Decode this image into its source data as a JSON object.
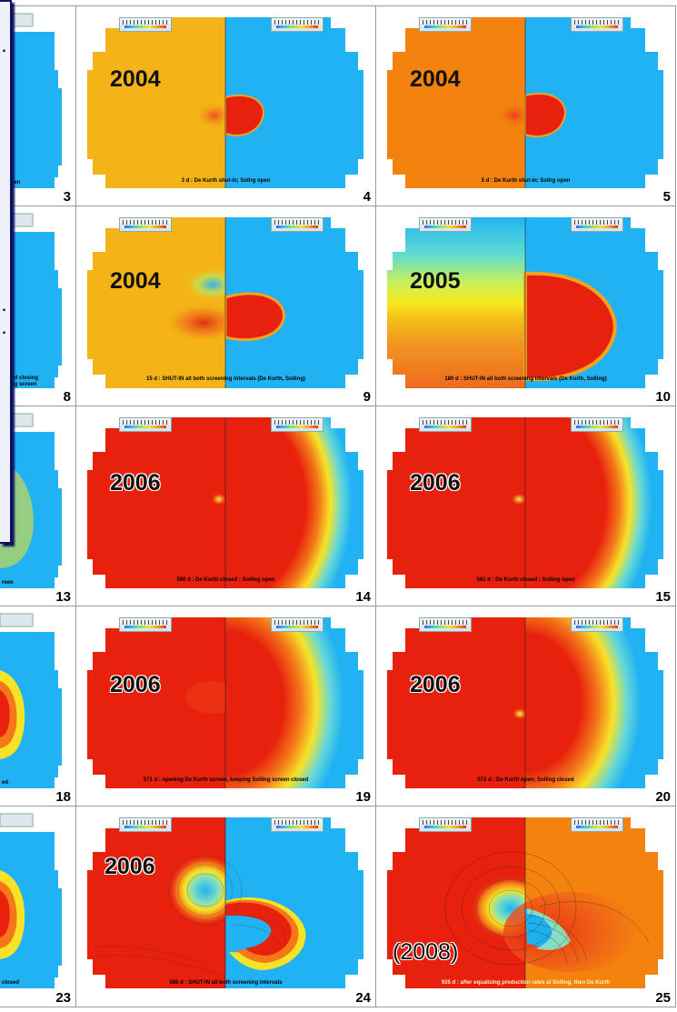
{
  "colors": {
    "plot_blue": "#20b2f2",
    "plot_red": "#e8200e",
    "plot_orange_2004": "#f3820e",
    "plot_yellow_2004": "#f4b417",
    "frame_border": "#9a9a9a",
    "overlay_border": "#0c1260"
  },
  "overlay": {
    "glyphs": [
      "▪",
      "▪",
      "▪"
    ]
  },
  "slides": [
    {
      "num": "3",
      "year": "",
      "caption": "open"
    },
    {
      "num": "4",
      "year": "2004",
      "caption": "3 d : De Kurth shut-in; Sollrg open"
    },
    {
      "num": "5",
      "year": "2004",
      "caption": "5 d : De Kurth shut-in; Sollrg open"
    },
    {
      "num": "8",
      "year": "",
      "caption": "nd closing\nng screen"
    },
    {
      "num": "9",
      "year": "2004",
      "caption": "15 d : SHUT-IN  all both screening intervals  (De Kurth, Solling)"
    },
    {
      "num": "10",
      "year": "2005",
      "caption": "180 d : SHUT-IN  all both screening intervals  (De Kurth, Solling)"
    },
    {
      "num": "13",
      "year": "",
      "caption": "reen"
    },
    {
      "num": "14",
      "year": "2006",
      "caption": "560 d : De Kurth closed ; Solling open"
    },
    {
      "num": "15",
      "year": "2006",
      "caption": "561 d : De Kurth closed ; Solling open"
    },
    {
      "num": "18",
      "year": "",
      "caption": "ed"
    },
    {
      "num": "19",
      "year": "2006",
      "caption": "571 d : opening De Kurth screen, keeping Solling screen closed"
    },
    {
      "num": "20",
      "year": "2006",
      "caption": "572 d : De Kurth open; Solling closed"
    },
    {
      "num": "23",
      "year": "",
      "caption": "closed"
    },
    {
      "num": "24",
      "year": "2006",
      "caption": "586 d :  SHUT-IN  all both screening intervals"
    },
    {
      "num": "25",
      "year": "(2008)",
      "caption": "935 d : after equalizing production rates at Solling, then De Kurth"
    }
  ]
}
